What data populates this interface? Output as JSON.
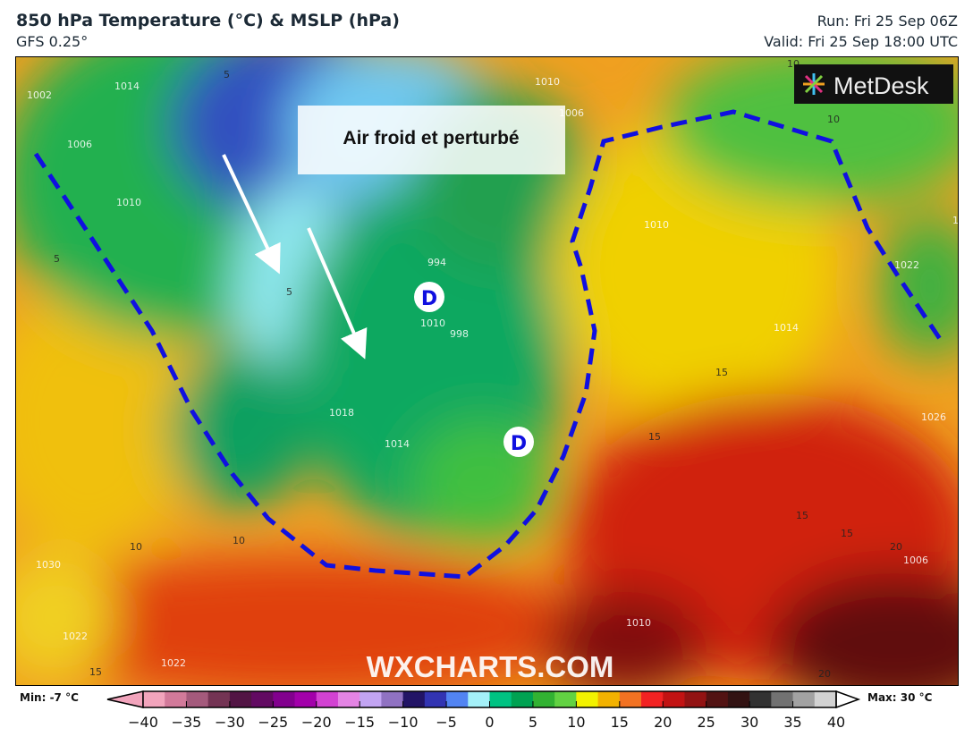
{
  "header": {
    "title": "850 hPa Temperature (°C) & MSLP (hPa)",
    "model": "GFS 0.25°",
    "run": "Run: Fri 25 Sep 06Z",
    "valid": "Valid: Fri 25 Sep 18:00 UTC"
  },
  "map": {
    "annotation": "Air froid et perturbé",
    "low_marker": "D",
    "logo": "MetDesk",
    "watermark": "WXCHARTS.COM",
    "boundary_color": "#1010e0",
    "isobar_labels": [
      "1002",
      "1006",
      "1010",
      "1014",
      "1018",
      "1014",
      "1010",
      "1026",
      "1030",
      "1022",
      "1022",
      "994",
      "998",
      "1006",
      "1010",
      "1010",
      "1014",
      "1022",
      "1026",
      "1006",
      "1010"
    ],
    "temp_labels": [
      "5",
      "5",
      "5",
      "10",
      "10",
      "10",
      "15",
      "15",
      "15",
      "15",
      "20",
      "20",
      "15",
      "10"
    ]
  },
  "colorbar": {
    "min_label": "Min: -7 °C",
    "max_label": "Max: 30 °C",
    "ticks": [
      "−40",
      "−35",
      "−30",
      "−25",
      "−20",
      "−15",
      "−10",
      "−5",
      "0",
      "5",
      "10",
      "15",
      "20",
      "25",
      "30",
      "35",
      "40"
    ],
    "colors": [
      "#f2a4bc",
      "#d27a9a",
      "#a45a7c",
      "#743454",
      "#521444",
      "#620a62",
      "#82008e",
      "#a200aa",
      "#d242d2",
      "#e484e4",
      "#c2a4f2",
      "#9072c2",
      "#221466",
      "#3234b2",
      "#5284f2",
      "#a4f0f8",
      "#00c282",
      "#00a252",
      "#32b232",
      "#62d242",
      "#f2f200",
      "#f2b200",
      "#f27222",
      "#f22222",
      "#c21212",
      "#921212",
      "#521212",
      "#321212",
      "#323232",
      "#727272",
      "#a2a2a2",
      "#d2d2d2"
    ]
  }
}
